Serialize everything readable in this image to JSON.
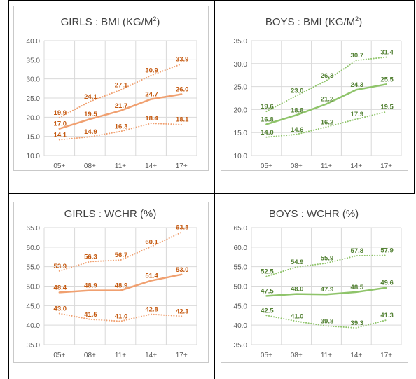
{
  "chart_data": [
    {
      "type": "line",
      "title": "GIRLS : BMI (KG/M",
      "title_sup": "2",
      "title_end": ")",
      "categories": [
        "05+",
        "08+",
        "11+",
        "14+",
        "17+"
      ],
      "ylim": [
        10,
        40
      ],
      "ytick_step": 5,
      "ytick_labels": [
        "10.0",
        "15.0",
        "20.0",
        "25.0",
        "30.0",
        "35.0",
        "40.0"
      ],
      "grid": true,
      "color": "#f0a070",
      "label_color": "#c55a11",
      "series": [
        {
          "values": [
            19.9,
            24.1,
            27.1,
            30.9,
            33.9
          ],
          "style": "dotted",
          "labels": [
            "19.9",
            "24.1",
            "27.1",
            "30.9",
            "33.9"
          ]
        },
        {
          "values": [
            17.0,
            19.5,
            21.7,
            24.7,
            26.0
          ],
          "style": "solid",
          "labels": [
            "17.0",
            "19.5",
            "21.7",
            "24.7",
            "26.0"
          ]
        },
        {
          "values": [
            14.1,
            14.9,
            16.3,
            18.4,
            18.1
          ],
          "style": "dotted",
          "labels": [
            "14.1",
            "14.9",
            "16.3",
            "18.4",
            "18.1"
          ]
        }
      ]
    },
    {
      "type": "line",
      "title": "BOYS : BMI (KG/M",
      "title_sup": "2",
      "title_end": ")",
      "categories": [
        "05+",
        "08+",
        "11+",
        "14+",
        "17+"
      ],
      "ylim": [
        10,
        35
      ],
      "ytick_step": 5,
      "ytick_labels": [
        "10.0",
        "15.0",
        "20.0",
        "25.0",
        "30.0",
        "35.0"
      ],
      "grid": true,
      "color": "#8fc46a",
      "label_color": "#548235",
      "series": [
        {
          "values": [
            19.6,
            23.0,
            26.3,
            30.7,
            31.4
          ],
          "style": "dotted",
          "labels": [
            "19.6",
            "23.0",
            "26.3",
            "30.7",
            "31.4"
          ]
        },
        {
          "values": [
            16.8,
            18.8,
            21.2,
            24.3,
            25.5
          ],
          "style": "solid",
          "labels": [
            "16.8",
            "18.8",
            "21.2",
            "24.3",
            "25.5"
          ]
        },
        {
          "values": [
            14.0,
            14.6,
            16.2,
            17.9,
            19.5
          ],
          "style": "dotted",
          "labels": [
            "14.0",
            "14.6",
            "16.2",
            "17.9",
            "19.5"
          ]
        }
      ]
    },
    {
      "type": "line",
      "title": "GIRLS : WCHR (%)",
      "title_sup": "",
      "title_end": "",
      "categories": [
        "05+",
        "08+",
        "11+",
        "14+",
        "17+"
      ],
      "ylim": [
        35,
        65
      ],
      "ytick_step": 5,
      "ytick_labels": [
        "35.0",
        "40.0",
        "45.0",
        "50.0",
        "55.0",
        "60.0",
        "65.0"
      ],
      "grid": true,
      "color": "#f0a070",
      "label_color": "#c55a11",
      "series": [
        {
          "values": [
            53.9,
            56.3,
            56.7,
            60.1,
            63.8
          ],
          "style": "dotted",
          "labels": [
            "53.9",
            "56.3",
            "56.7",
            "60.1",
            "63.8"
          ]
        },
        {
          "values": [
            48.4,
            48.9,
            48.9,
            51.4,
            53.0
          ],
          "style": "solid",
          "labels": [
            "48.4",
            "48.9",
            "48.9",
            "51.4",
            "53.0"
          ]
        },
        {
          "values": [
            43.0,
            41.5,
            41.0,
            42.8,
            42.3
          ],
          "style": "dotted",
          "labels": [
            "43.0",
            "41.5",
            "41.0",
            "42.8",
            "42.3"
          ]
        }
      ]
    },
    {
      "type": "line",
      "title": "BOYS : WCHR (%)",
      "title_sup": "",
      "title_end": "",
      "categories": [
        "05+",
        "08+",
        "11+",
        "14+",
        "17+"
      ],
      "ylim": [
        35,
        65
      ],
      "ytick_step": 5,
      "ytick_labels": [
        "35.0",
        "40.0",
        "45.0",
        "50.0",
        "55.0",
        "60.0",
        "65.0"
      ],
      "grid": true,
      "color": "#8fc46a",
      "label_color": "#548235",
      "series": [
        {
          "values": [
            52.5,
            54.9,
            55.9,
            57.8,
            57.9
          ],
          "style": "dotted",
          "labels": [
            "52.5",
            "54.9",
            "55.9",
            "57.8",
            "57.9"
          ]
        },
        {
          "values": [
            47.5,
            48.0,
            47.9,
            48.5,
            49.6
          ],
          "style": "solid",
          "labels": [
            "47.5",
            "48.0",
            "47.9",
            "48.5",
            "49.6"
          ]
        },
        {
          "values": [
            42.5,
            41.0,
            39.8,
            39.3,
            41.3
          ],
          "style": "dotted",
          "labels": [
            "42.5",
            "41.0",
            "39.8",
            "39.3",
            "41.3"
          ]
        }
      ]
    }
  ]
}
